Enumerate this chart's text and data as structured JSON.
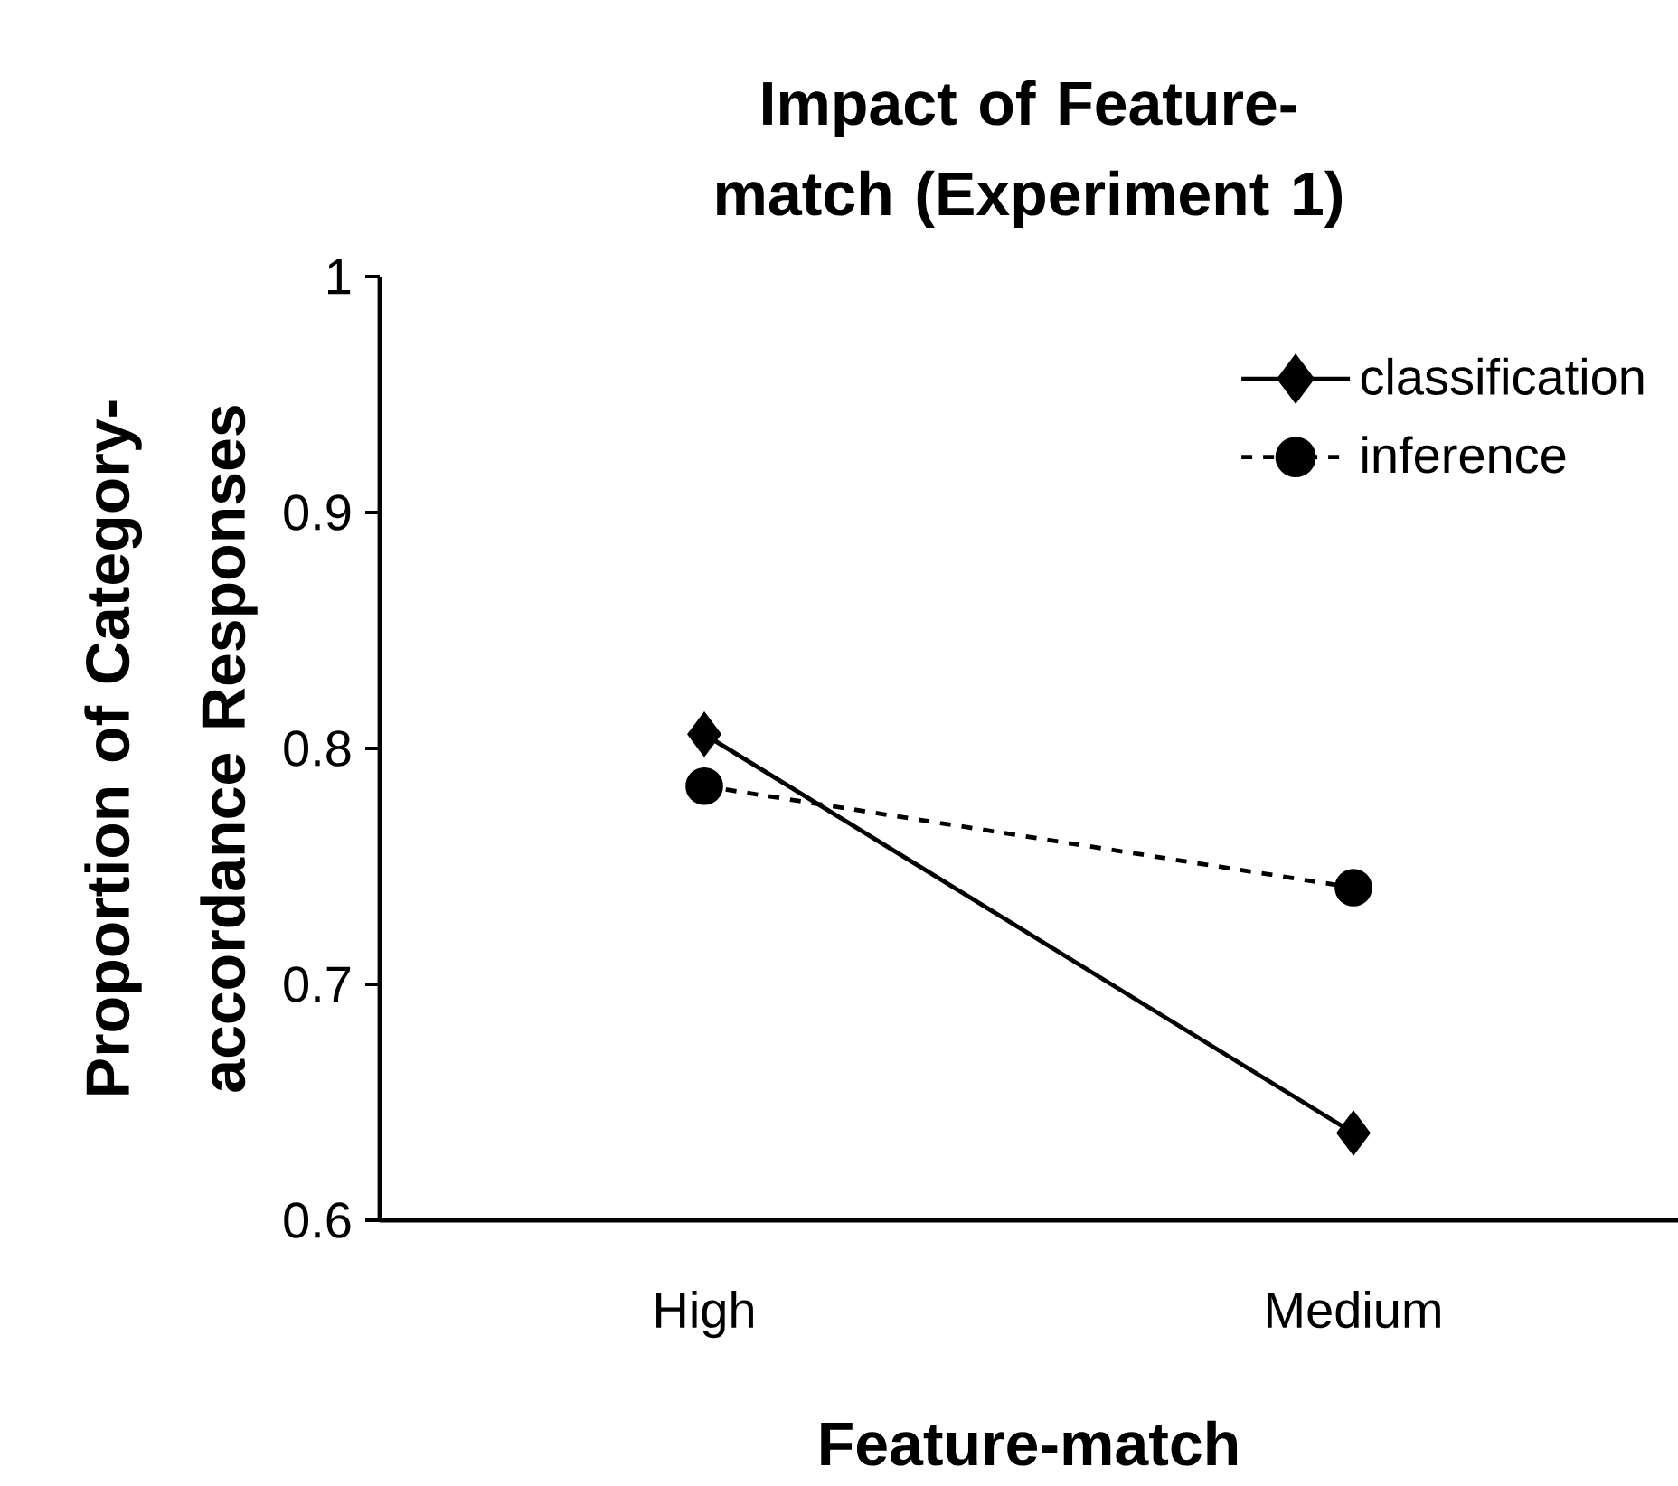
{
  "chart_data": {
    "type": "line",
    "title": "Impact of Feature-match (Experiment 1)",
    "xlabel": "Feature-match",
    "ylabel": "Proportion of Category-accordance Responses",
    "categories": [
      "High",
      "Medium"
    ],
    "series": [
      {
        "name": "classification",
        "color": "#000000",
        "values": [
          0.806,
          0.637
        ],
        "marker": "diamond",
        "line_style": "solid"
      },
      {
        "name": "inference",
        "color": "#000000",
        "values": [
          0.784,
          0.741
        ],
        "marker": "circle",
        "line_style": "dashed"
      }
    ],
    "ylim": [
      0.6,
      1
    ],
    "yticks": [
      0.6,
      0.7,
      0.8,
      0.9,
      1
    ],
    "grid": false,
    "legend": "top right"
  }
}
